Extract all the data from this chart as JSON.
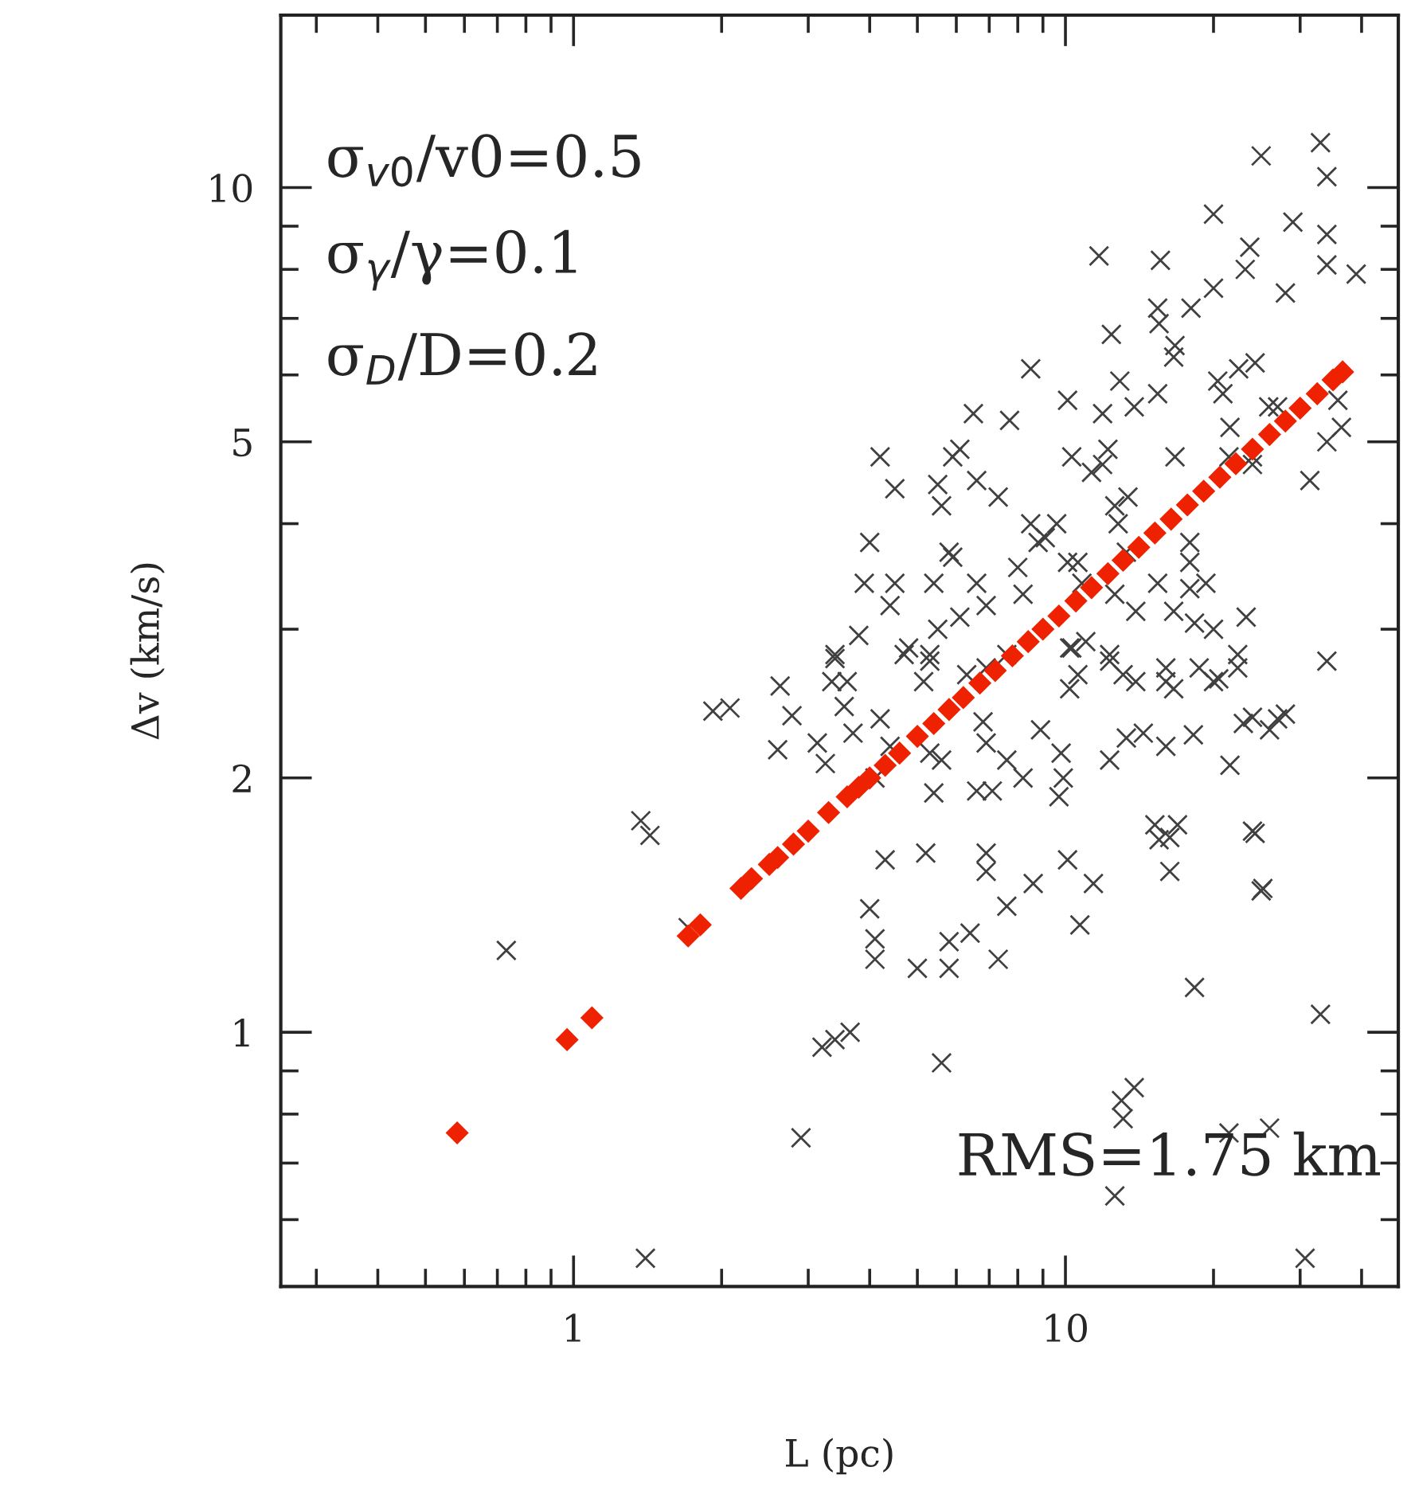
{
  "chart_data": {
    "type": "scatter",
    "xlabel": "L (pc)",
    "ylabel": "Δv (km/s)",
    "log": "xy",
    "grid": false,
    "legend": false,
    "xlim": [
      0.254,
      47.5
    ],
    "ylim": [
      0.5,
      16
    ],
    "xticks": [
      {
        "value": 0.3,
        "label": null
      },
      {
        "value": 0.4,
        "label": null
      },
      {
        "value": 0.5,
        "label": null
      },
      {
        "value": 0.6,
        "label": null
      },
      {
        "value": 0.7,
        "label": null
      },
      {
        "value": 0.8,
        "label": null
      },
      {
        "value": 0.9,
        "label": null
      },
      1,
      {
        "value": 2,
        "label": null
      },
      {
        "value": 3,
        "label": null
      },
      {
        "value": 4,
        "label": null
      },
      {
        "value": 5,
        "label": null
      },
      {
        "value": 6,
        "label": null
      },
      {
        "value": 7,
        "label": null
      },
      {
        "value": 8,
        "label": null
      },
      {
        "value": 9,
        "label": null
      },
      10,
      {
        "value": 20,
        "label": null
      },
      {
        "value": 30,
        "label": null
      },
      {
        "value": 40,
        "label": null
      }
    ],
    "yticks": [
      {
        "value": 0.6,
        "label": null
      },
      {
        "value": 0.7,
        "label": null
      },
      {
        "value": 0.8,
        "label": null
      },
      {
        "value": 0.9,
        "label": null
      },
      1,
      2,
      {
        "value": 3,
        "label": null
      },
      {
        "value": 4,
        "label": null
      },
      5,
      {
        "value": 6,
        "label": null
      },
      {
        "value": 7,
        "label": null
      },
      {
        "value": 8,
        "label": null
      },
      {
        "value": 9,
        "label": null
      },
      10
    ],
    "annotations": [
      "σ$_{v0}$/v0=0.5",
      "σ$_{γ}$/γ=0.1",
      "σ$_{D}$/D=0.2",
      "RMS=1.75 km"
    ],
    "series": [
      {
        "color": "#404040",
        "marker": "cross",
        "x": [
          0.73,
          1.37,
          1.43,
          1.92,
          2.08,
          1.71,
          1.4,
          3.2,
          3.65,
          2.9,
          5.6,
          13,
          13.8,
          12.6,
          26,
          30.7,
          33,
          34,
          25,
          24,
          16.9,
          16.3,
          18.2,
          23,
          27,
          20.5,
          33,
          25,
          34,
          20,
          15.6,
          11.7,
          29,
          34,
          23.7,
          23.2,
          34,
          39,
          28,
          20,
          18,
          15.4,
          15.5,
          12.4,
          16.7,
          16.6,
          8.5,
          12.9,
          10.1,
          6.5,
          7.7,
          11.9,
          13.8,
          15.4,
          20.4,
          20.9,
          22.5,
          24.3,
          35.8,
          36.4,
          34,
          31.4,
          21.6,
          21.5,
          25.9,
          27,
          24,
          24,
          4.2,
          4.5,
          6.1,
          5.9,
          5.5,
          5.6,
          6.6,
          7.3,
          10.3,
          11.3,
          11.9,
          12.2,
          13.4,
          16.7,
          12.6,
          12.8,
          4.0,
          5.8,
          5.9,
          8.5,
          9.6,
          8.8,
          9.1,
          13.3,
          17.9,
          17.9,
          3.9,
          4.5,
          5.4,
          4.4,
          3.8,
          3.4,
          6.1,
          5.5,
          6.6,
          6.9,
          8.0,
          8.2,
          10.1,
          10.6,
          10.8,
          12.6,
          13.9,
          16.6,
          18.3,
          20,
          23.3,
          15.4,
          17.9,
          19.3,
          4.8,
          5.3,
          10.2,
          11,
          12.3,
          16,
          18.7,
          22.4,
          3.4,
          3.6,
          4.7,
          5.3,
          5.15,
          6.3,
          6.9,
          7.6,
          10.3,
          10.6,
          10.2,
          12.3,
          13.1,
          13.9,
          16,
          16.6,
          20,
          22.4,
          4.2,
          3.7,
          4.4,
          4.1,
          5.3,
          5.6,
          5.4,
          6.8,
          6.9,
          6.6,
          7.1,
          7.6,
          8.2,
          8.9,
          9.8,
          9.9,
          9.7,
          12.3,
          13.3,
          14.4,
          16,
          24,
          28,
          26,
          21.6,
          15.2,
          15.5,
          16.3,
          24.3,
          25.2,
          5.2,
          6.9,
          6.9,
          10.1,
          11.4,
          8.6,
          7.6,
          10.7,
          4.0,
          4.1,
          4.1,
          5.0,
          5.8,
          5.8,
          6.4,
          7.3,
          18.3,
          3.4,
          13.1,
          21.5,
          2.63,
          2.78,
          3.35,
          3.55,
          3.13,
          3.25,
          2.6,
          4.3
        ],
        "values": [
          1.25,
          1.78,
          1.71,
          2.4,
          2.42,
          1.33,
          0.54,
          0.96,
          1.0,
          0.75,
          0.92,
          0.83,
          0.86,
          0.64,
          0.77,
          0.54,
          1.05,
          2.75,
          1.47,
          1.73,
          1.76,
          1.7,
          2.25,
          2.32,
          2.35,
          2.62,
          11.3,
          10.9,
          10.3,
          9.3,
          8.2,
          8.3,
          9.1,
          8.8,
          8.5,
          8.0,
          8.1,
          7.9,
          7.5,
          7.6,
          7.2,
          7.2,
          6.9,
          6.7,
          6.5,
          6.3,
          6.1,
          5.9,
          5.6,
          5.4,
          5.3,
          5.4,
          5.5,
          5.7,
          5.9,
          5.7,
          6.1,
          6.2,
          5.6,
          5.2,
          5.0,
          4.5,
          5.2,
          4.8,
          5.5,
          5.5,
          4.8,
          4.7,
          4.8,
          4.4,
          4.9,
          4.8,
          4.45,
          4.2,
          4.5,
          4.3,
          4.8,
          4.6,
          4.7,
          4.9,
          4.3,
          4.8,
          4.2,
          4.0,
          3.8,
          3.7,
          3.65,
          4.0,
          4.0,
          3.8,
          3.85,
          3.7,
          3.8,
          3.6,
          3.4,
          3.4,
          3.4,
          3.2,
          2.95,
          2.8,
          3.1,
          3.0,
          3.4,
          3.2,
          3.55,
          3.3,
          3.6,
          3.6,
          3.4,
          3.3,
          3.15,
          3.15,
          3.05,
          3.0,
          3.1,
          3.4,
          3.35,
          3.4,
          2.85,
          2.8,
          2.85,
          2.9,
          2.8,
          2.7,
          2.7,
          2.8,
          2.77,
          2.6,
          2.8,
          2.75,
          2.6,
          2.65,
          2.7,
          2.8,
          2.85,
          2.65,
          2.55,
          2.75,
          2.65,
          2.6,
          2.6,
          2.55,
          2.6,
          2.7,
          2.35,
          2.26,
          2.18,
          2.0,
          2.14,
          2.1,
          1.92,
          2.33,
          2.2,
          1.93,
          1.93,
          2.1,
          2.0,
          2.28,
          2.14,
          2.0,
          1.9,
          2.1,
          2.23,
          2.26,
          2.18,
          2.36,
          2.38,
          2.28,
          2.07,
          1.76,
          1.69,
          1.55,
          1.72,
          1.48,
          1.63,
          1.63,
          1.55,
          1.6,
          1.5,
          1.5,
          1.41,
          1.34,
          1.4,
          1.29,
          1.22,
          1.19,
          1.19,
          1.28,
          1.31,
          1.22,
          1.13,
          0.98,
          0.79,
          0.76,
          2.57,
          2.37,
          2.6,
          2.43,
          2.2,
          2.08,
          2.16,
          1.6
        ]
      },
      {
        "color": "#ee2200",
        "marker": "diamond",
        "x": [
          0.58,
          0.97,
          1.09,
          1.71,
          1.81,
          2.19,
          2.3,
          2.5,
          2.6,
          2.8,
          3.0,
          3.3,
          3.6,
          3.8,
          4.0,
          4.3,
          4.6,
          5.0,
          5.4,
          5.8,
          6.2,
          6.7,
          7.2,
          7.8,
          8.4,
          9.0,
          9.7,
          10.5,
          11.3,
          12.2,
          13.1,
          14.1,
          15.2,
          16.4,
          17.7,
          19.1,
          20.6,
          22.2,
          24,
          26,
          28,
          30,
          32.5,
          35,
          36.6
        ],
        "values": [
          0.76,
          0.98,
          1.04,
          1.3,
          1.34,
          1.48,
          1.52,
          1.58,
          1.61,
          1.67,
          1.73,
          1.82,
          1.9,
          1.95,
          2.0,
          2.07,
          2.14,
          2.24,
          2.32,
          2.41,
          2.49,
          2.59,
          2.68,
          2.79,
          2.9,
          3.0,
          3.11,
          3.24,
          3.36,
          3.49,
          3.62,
          3.75,
          3.9,
          4.05,
          4.21,
          4.37,
          4.54,
          4.71,
          4.9,
          5.1,
          5.29,
          5.48,
          5.7,
          5.92,
          6.05
        ]
      }
    ]
  }
}
